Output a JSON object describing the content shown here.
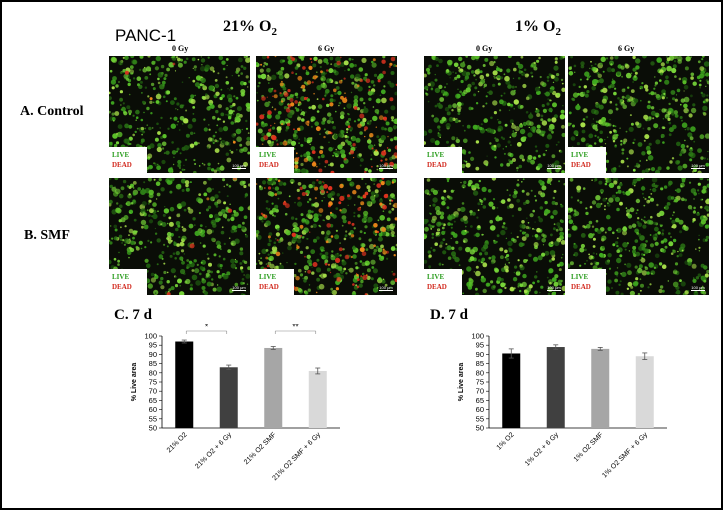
{
  "figure": {
    "cell_line": "PANC-1",
    "cond_21": "21% O",
    "cond_21_sub": "2",
    "cond_1": "1% O",
    "cond_1_sub": "2",
    "dose_0": "0 Gy",
    "dose_6": "6 Gy",
    "row_a": "A. Control",
    "row_b": "B. SMF",
    "legend_live": "LIVE",
    "legend_dead": "DEAD",
    "scale_label": "100 μm",
    "colors": {
      "live": "#2a9d1e",
      "dead": "#d22a1f"
    }
  },
  "panels": [
    {
      "id": "control-21-0gy",
      "dead_level": 0.02
    },
    {
      "id": "control-21-6gy",
      "dead_level": 0.55
    },
    {
      "id": "control-1-0gy",
      "dead_level": 0.0
    },
    {
      "id": "control-1-6gy",
      "dead_level": 0.0
    },
    {
      "id": "smf-21-0gy",
      "dead_level": 0.02
    },
    {
      "id": "smf-21-6gy",
      "dead_level": 0.45
    },
    {
      "id": "smf-1-0gy",
      "dead_level": 0.0
    },
    {
      "id": "smf-1-6gy",
      "dead_level": 0.0
    }
  ],
  "chart_data": [
    {
      "type": "bar",
      "title": "C. 7 d",
      "ylabel": "% Live area",
      "ylim": [
        50,
        100
      ],
      "yticks": [
        50,
        55,
        60,
        65,
        70,
        75,
        80,
        85,
        90,
        95,
        100
      ],
      "categories": [
        "21% O2",
        "21% O2 + 6 Gy",
        "21% O2 SMF",
        "21% O2 SMF + 6 Gy"
      ],
      "values": [
        97,
        83,
        93.5,
        81
      ],
      "errors": [
        0.8,
        1.2,
        0.8,
        1.6
      ],
      "colors": [
        "#000000",
        "#404040",
        "#a6a6a6",
        "#d9d9d9"
      ],
      "annotations": [
        {
          "text": "*",
          "from": 0,
          "to": 1
        },
        {
          "text": "**",
          "from": 2,
          "to": 3
        }
      ]
    },
    {
      "type": "bar",
      "title": "D. 7 d",
      "ylabel": "% Live area",
      "ylim": [
        50,
        100
      ],
      "yticks": [
        50,
        55,
        60,
        65,
        70,
        75,
        80,
        85,
        90,
        95,
        100
      ],
      "categories": [
        "1% O2",
        "1% O2 + 6 Gy",
        "1% O2 SMF",
        "1% O2 SMF + 6 Gy"
      ],
      "values": [
        90.5,
        94,
        93,
        89
      ],
      "errors": [
        2.5,
        1.2,
        0.8,
        1.8
      ],
      "colors": [
        "#000000",
        "#404040",
        "#a6a6a6",
        "#d9d9d9"
      ],
      "annotations": []
    }
  ]
}
